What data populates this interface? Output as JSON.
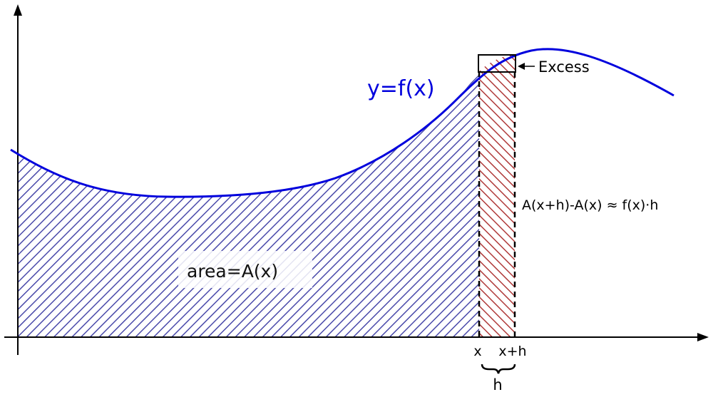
{
  "colors": {
    "curve": "#0000dd",
    "area_hatch": "#4a4aaa",
    "strip_hatch": "#b03a3a",
    "axis": "#000000",
    "label_bg": "#ffffff"
  },
  "labels": {
    "function": "y=f(x)",
    "area": "area=A(x)",
    "excess": "Excess",
    "approximation": "A(x+h)-A(x) ≈ f(x)·h",
    "x_tick": "x",
    "xh_tick": "x+h",
    "width": "h"
  }
}
